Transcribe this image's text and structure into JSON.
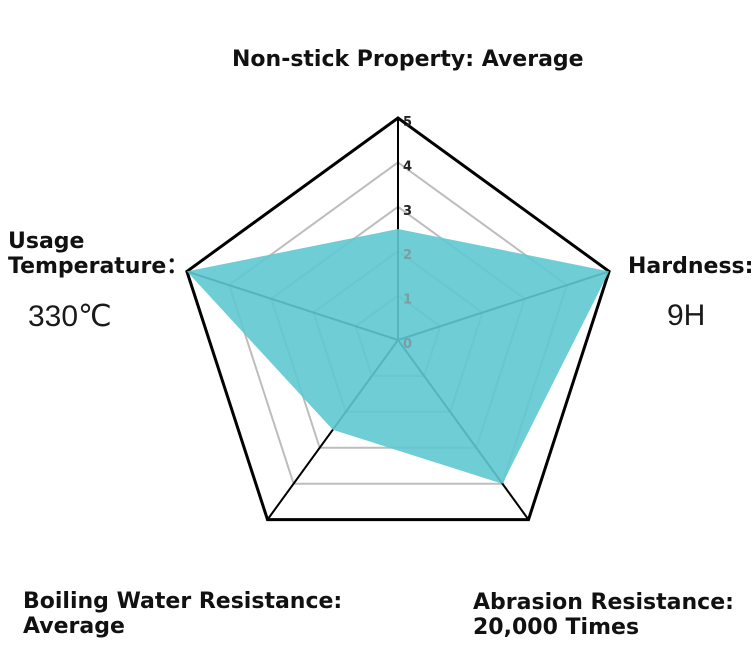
{
  "chart_data": {
    "type": "radar",
    "axes": [
      {
        "label_lines": [
          "Non-stick Property: Average"
        ],
        "value": 2.5
      },
      {
        "label_lines": [
          "Hardness:"
        ],
        "value_text": "9H",
        "value": 5
      },
      {
        "label_lines": [
          "Abrasion Resistance:",
          "20,000 Times"
        ],
        "value": 4
      },
      {
        "label_lines": [
          "Boiling Water Resistance:",
          "Average"
        ],
        "value": 2.5
      },
      {
        "label_lines": [
          "Usage",
          "Temperature："
        ],
        "value_text": "330℃",
        "value": 5
      }
    ],
    "scale": {
      "min": 0,
      "max": 5,
      "ticks": [
        "0",
        "1",
        "2",
        "3",
        "4",
        "5"
      ]
    },
    "colors": {
      "fill": "#5ec8d0",
      "outer_ring": "#000000",
      "inner_rings": "#bdbdbd"
    }
  }
}
